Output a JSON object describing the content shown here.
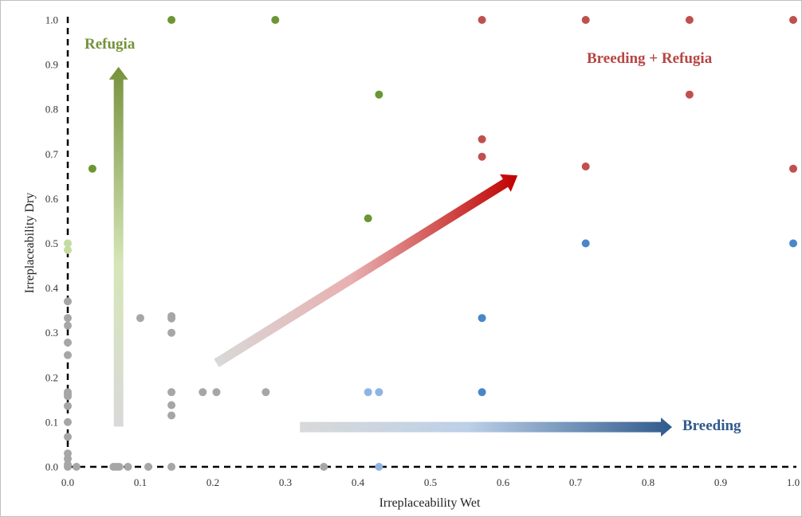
{
  "chart_data": {
    "type": "scatter",
    "xlabel": "Irreplaceability Wet",
    "ylabel": "Irreplaceability Dry",
    "xlim": [
      0,
      1
    ],
    "ylim": [
      0,
      1
    ],
    "x_ticks": [
      "0.0",
      "0.1",
      "0.2",
      "0.3",
      "0.4",
      "0.5",
      "0.6",
      "0.7",
      "0.8",
      "0.9",
      "1.0"
    ],
    "y_ticks": [
      "0.0",
      "0.1",
      "0.2",
      "0.3",
      "0.4",
      "0.5",
      "0.6",
      "0.7",
      "0.8",
      "0.9",
      "1.0"
    ],
    "grid": false,
    "annotations": [
      {
        "text": "Refugia",
        "color": "#76923c"
      },
      {
        "text": "Breeding + Refugia",
        "color": "#b84545"
      },
      {
        "text": "Breeding",
        "color": "#2f5a8c"
      }
    ],
    "colors": {
      "gray": "#a6a6a6",
      "green": "#6b9634",
      "light_green": "#c4dca0",
      "red": "#c0504d",
      "blue": "#4a86c8",
      "light_blue": "#8eb4e3"
    },
    "points": [
      {
        "x": 0.143,
        "y": 1.0,
        "c": "green"
      },
      {
        "x": 0.286,
        "y": 1.0,
        "c": "green"
      },
      {
        "x": 0.429,
        "y": 0.833,
        "c": "green"
      },
      {
        "x": 0.034,
        "y": 0.667,
        "c": "green"
      },
      {
        "x": 0.414,
        "y": 0.556,
        "c": "green"
      },
      {
        "x": 0.0,
        "y": 0.5,
        "c": "light_green"
      },
      {
        "x": 0.0,
        "y": 0.485,
        "c": "light_green"
      },
      {
        "x": 0.571,
        "y": 1.0,
        "c": "red"
      },
      {
        "x": 0.714,
        "y": 1.0,
        "c": "red"
      },
      {
        "x": 0.857,
        "y": 1.0,
        "c": "red"
      },
      {
        "x": 1.0,
        "y": 1.0,
        "c": "red"
      },
      {
        "x": 0.857,
        "y": 0.833,
        "c": "red"
      },
      {
        "x": 0.571,
        "y": 0.733,
        "c": "red"
      },
      {
        "x": 0.571,
        "y": 0.694,
        "c": "red"
      },
      {
        "x": 0.714,
        "y": 0.672,
        "c": "red"
      },
      {
        "x": 1.0,
        "y": 0.667,
        "c": "red"
      },
      {
        "x": 0.714,
        "y": 0.5,
        "c": "blue"
      },
      {
        "x": 1.0,
        "y": 0.5,
        "c": "blue"
      },
      {
        "x": 0.571,
        "y": 0.333,
        "c": "blue"
      },
      {
        "x": 0.571,
        "y": 0.167,
        "c": "blue"
      },
      {
        "x": 0.414,
        "y": 0.167,
        "c": "light_blue"
      },
      {
        "x": 0.429,
        "y": 0.167,
        "c": "light_blue"
      },
      {
        "x": 0.429,
        "y": 0.0,
        "c": "light_blue"
      },
      {
        "x": 0.0,
        "y": 0.37,
        "c": "gray"
      },
      {
        "x": 0.0,
        "y": 0.333,
        "c": "gray"
      },
      {
        "x": 0.0,
        "y": 0.316,
        "c": "gray"
      },
      {
        "x": 0.0,
        "y": 0.278,
        "c": "gray"
      },
      {
        "x": 0.0,
        "y": 0.25,
        "c": "gray"
      },
      {
        "x": 0.0,
        "y": 0.167,
        "c": "gray"
      },
      {
        "x": 0.0,
        "y": 0.163,
        "c": "gray"
      },
      {
        "x": 0.0,
        "y": 0.158,
        "c": "gray"
      },
      {
        "x": 0.0,
        "y": 0.136,
        "c": "gray"
      },
      {
        "x": 0.0,
        "y": 0.1,
        "c": "gray"
      },
      {
        "x": 0.0,
        "y": 0.067,
        "c": "gray"
      },
      {
        "x": 0.0,
        "y": 0.03,
        "c": "gray"
      },
      {
        "x": 0.0,
        "y": 0.018,
        "c": "gray"
      },
      {
        "x": 0.0,
        "y": 0.005,
        "c": "gray"
      },
      {
        "x": 0.0,
        "y": 0.0,
        "c": "gray"
      },
      {
        "x": 0.012,
        "y": 0.0,
        "c": "gray"
      },
      {
        "x": 0.063,
        "y": 0.0,
        "c": "gray"
      },
      {
        "x": 0.067,
        "y": 0.0,
        "c": "gray"
      },
      {
        "x": 0.071,
        "y": 0.0,
        "c": "gray"
      },
      {
        "x": 0.083,
        "y": 0.0,
        "c": "gray"
      },
      {
        "x": 0.111,
        "y": 0.0,
        "c": "gray"
      },
      {
        "x": 0.143,
        "y": 0.0,
        "c": "gray"
      },
      {
        "x": 0.353,
        "y": 0.0,
        "c": "gray"
      },
      {
        "x": 0.1,
        "y": 0.333,
        "c": "gray"
      },
      {
        "x": 0.143,
        "y": 0.337,
        "c": "gray"
      },
      {
        "x": 0.143,
        "y": 0.332,
        "c": "gray"
      },
      {
        "x": 0.143,
        "y": 0.3,
        "c": "gray"
      },
      {
        "x": 0.143,
        "y": 0.167,
        "c": "gray"
      },
      {
        "x": 0.143,
        "y": 0.138,
        "c": "gray"
      },
      {
        "x": 0.143,
        "y": 0.115,
        "c": "gray"
      },
      {
        "x": 0.186,
        "y": 0.167,
        "c": "gray"
      },
      {
        "x": 0.205,
        "y": 0.167,
        "c": "gray"
      },
      {
        "x": 0.273,
        "y": 0.167,
        "c": "gray"
      }
    ]
  }
}
